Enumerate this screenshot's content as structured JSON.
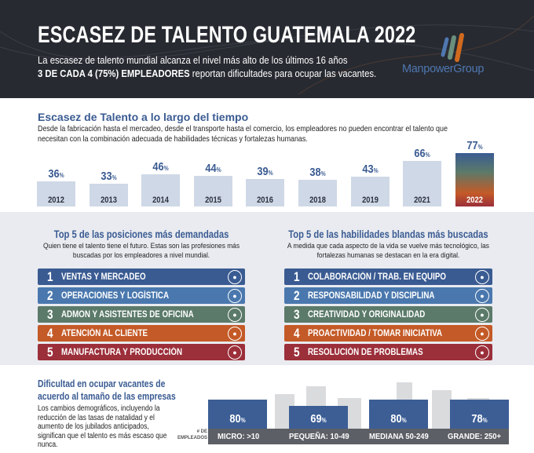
{
  "header": {
    "title": "ESCASEZ DE TALENTO GUATEMALA 2022",
    "line1": "La escasez de talento mundial alcanza el nivel más alto de los últimos 16 años",
    "line2_bold": "3 DE CADA 4 (75%) EMPLEADORES",
    "line2_rest": " reportan dificultades para ocupar las vacantes.",
    "logo_text": "ManpowerGroup",
    "logo_colors": [
      "#4f77b0",
      "#6b8f7d",
      "#d06a1e"
    ]
  },
  "timeline": {
    "heading": "Escasez de Talento a lo largo del tiempo",
    "text": "Desde la fabricación hasta el mercadeo, desde el transporte hasta el comercio, los empleadores no pueden encontrar el talento que necesitan con la combinación adecuada de habilidades técnicas y fortalezas humanas.",
    "unit": "%"
  },
  "chart_data": {
    "type": "bar",
    "categories": [
      "2012",
      "2013",
      "2014",
      "2015",
      "2016",
      "2018",
      "2019",
      "2021",
      "2022"
    ],
    "values": [
      36,
      33,
      46,
      44,
      39,
      38,
      43,
      66,
      77
    ],
    "highlight": "2022"
  },
  "positions": {
    "heading": "Top 5 de las posiciones más demandadas",
    "text": "Quien tiene el talento tiene el futuro. Estas son las profesiones más buscadas por los empleadores a nivel mundial.",
    "items": [
      {
        "n": "1",
        "label": "VENTAS Y MERCADEO",
        "icon": "growth-chart-icon"
      },
      {
        "n": "2",
        "label": "OPERACIONES Y LOGÍSTICA",
        "icon": "location-pin-icon"
      },
      {
        "n": "3",
        "label": "ADMON Y ASISTENTES DE OFICINA",
        "icon": "headset-icon"
      },
      {
        "n": "4",
        "label": "ATENCIÓN AL CLIENTE",
        "icon": "customer-service-icon"
      },
      {
        "n": "5",
        "label": "MANUFACTURA Y PRODUCCIÓN",
        "icon": "robot-arm-icon"
      }
    ]
  },
  "skills": {
    "heading": "Top 5 de las habilidades blandas más buscadas",
    "text": "A medida que cada aspecto de la vida se vuelve más tecnológico, las fortalezas humanas se destacan en la era digital.",
    "items": [
      {
        "n": "1",
        "label": "COLABORACIÓN / TRAB. EN EQUIPO",
        "icon": "team-icon"
      },
      {
        "n": "2",
        "label": "RESPONSABILIDAD Y DISCIPLINA",
        "icon": "clipboard-icon"
      },
      {
        "n": "3",
        "label": "CREATIVIDAD Y ORIGINALIDAD",
        "icon": "hand-pointer-icon"
      },
      {
        "n": "4",
        "label": "PROACTIVIDAD / TOMAR INICIATIVA",
        "icon": "person-icon"
      },
      {
        "n": "5",
        "label": "RESOLUCIÓN DE PROBLEMAS",
        "icon": "lightbulb-icon"
      }
    ]
  },
  "item_colors": [
    "#3a5b92",
    "#4a78ae",
    "#5b7a6a",
    "#c45a27",
    "#9b2f3a"
  ],
  "company_size": {
    "heading": "Dificultad en ocupar vacantes de acuerdo al tamaño de las empresas",
    "text": "Los cambios demográficos, incluyendo la reducción de las tasas de natalidad y el aumento de los jubilados anticipados, significan que el talento es más escaso que nunca.",
    "axis_label": "# DE EMPLEADOS",
    "sizes": [
      {
        "label": "MICRO: >10",
        "value": "80"
      },
      {
        "label": "PEQUEÑA: 10-49",
        "value": "69"
      },
      {
        "label": "MEDIANA 50-249",
        "value": "80"
      },
      {
        "label": "GRANDE: 250+",
        "value": "78"
      }
    ]
  }
}
